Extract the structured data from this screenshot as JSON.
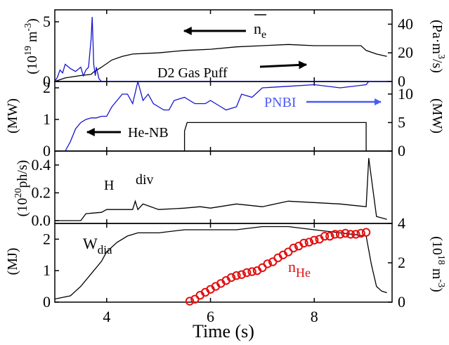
{
  "figure": {
    "xlabel": "Time (s)",
    "xticks": [
      4,
      6,
      8
    ],
    "xlim": [
      3,
      9.5
    ]
  },
  "chart_data": [
    {
      "type": "line",
      "panel": "ne-gaspuff",
      "ylim_left": [
        0,
        6
      ],
      "ylim_right": [
        0,
        50
      ],
      "yticks_left": [
        0,
        5
      ],
      "yticks_right": [
        0,
        20,
        40
      ],
      "ylabel_left": {
        "base": "(10",
        "sup": "19",
        "mid": " m",
        "sup2": "-3",
        "end": ")"
      },
      "ylabel_right": {
        "base": "(Pa·m",
        "sup": "3",
        "end": "/s)"
      },
      "annotations": {
        "ne": "n",
        "ne_sub": "e",
        "gas": "D2 Gas Puff"
      },
      "series": [
        {
          "name": "ne",
          "color": "#000000",
          "x": [
            3.0,
            3.2,
            3.5,
            3.7,
            3.75,
            3.9,
            4.1,
            4.3,
            4.5,
            5.0,
            5.5,
            6.0,
            6.5,
            7.0,
            7.5,
            8.0,
            8.5,
            8.9,
            9.0,
            9.2,
            9.4
          ],
          "y": [
            0.0,
            0.3,
            0.5,
            0.6,
            0.8,
            1.2,
            1.8,
            2.1,
            2.3,
            2.4,
            2.6,
            2.7,
            2.9,
            3.0,
            3.1,
            3.0,
            3.0,
            3.0,
            2.6,
            2.3,
            2.1
          ]
        },
        {
          "name": "D2 Gas Puff",
          "color": "#1515d0",
          "x": [
            3.0,
            3.05,
            3.1,
            3.15,
            3.2,
            3.3,
            3.4,
            3.5,
            3.55,
            3.6,
            3.65,
            3.7,
            3.72,
            3.75,
            3.78,
            3.8,
            3.85,
            3.9,
            4.0,
            4.2,
            5.0,
            6.0,
            7.0,
            8.0,
            9.0,
            9.4
          ],
          "y": [
            0,
            3,
            8,
            6,
            12,
            9,
            7,
            10,
            4,
            8,
            10,
            30,
            45,
            12,
            4,
            10,
            2,
            0,
            0,
            0,
            0,
            0,
            0,
            0,
            0,
            0
          ]
        }
      ]
    },
    {
      "type": "line",
      "panel": "nbi",
      "ylim_left": [
        0,
        2.2
      ],
      "ylim_right": [
        0,
        12.2
      ],
      "yticks_left": [
        0,
        1,
        2
      ],
      "yticks_right": [
        0,
        5,
        10
      ],
      "ylabel_left": {
        "base": "(MW)"
      },
      "ylabel_right": {
        "base": "(MW)"
      },
      "annotations": {
        "pnbi": "PNBI",
        "henb": "He-NB"
      },
      "series": [
        {
          "name": "PNBI",
          "color": "#1515d0",
          "x": [
            3.0,
            3.2,
            3.3,
            3.4,
            3.5,
            3.6,
            3.7,
            3.8,
            3.9,
            4.0,
            4.1,
            4.2,
            4.3,
            4.4,
            4.5,
            4.6,
            4.7,
            4.8,
            4.9,
            5.0,
            5.1,
            5.2,
            5.3,
            5.5,
            5.7,
            5.9,
            6.0,
            6.2,
            6.3,
            6.5,
            6.6,
            6.8,
            7.0,
            7.5,
            8.0,
            8.5,
            9.0,
            9.05,
            9.5
          ],
          "y": [
            0.0,
            0.0,
            0.3,
            0.7,
            0.9,
            1.0,
            1.05,
            1.05,
            1.1,
            1.1,
            1.4,
            1.6,
            1.8,
            1.8,
            1.5,
            2.2,
            1.6,
            1.8,
            1.5,
            1.4,
            1.3,
            1.3,
            1.6,
            1.7,
            1.5,
            1.5,
            1.6,
            1.4,
            1.3,
            1.4,
            1.8,
            1.7,
            2.0,
            2.05,
            2.1,
            2.0,
            2.1,
            2.2,
            2.2
          ]
        },
        {
          "name": "He-NB",
          "color": "#000000",
          "x": [
            3.0,
            5.5,
            5.5,
            5.55,
            9.0,
            9.0,
            9.5
          ],
          "y": [
            0.0,
            0.0,
            3.5,
            5.0,
            5.0,
            0.0,
            0.0
          ]
        }
      ]
    },
    {
      "type": "line",
      "panel": "h-div",
      "ylim": [
        -0.02,
        0.5
      ],
      "yticks": [
        0.0,
        0.2,
        0.4
      ],
      "ylabel": {
        "base": "(10",
        "sup": "20",
        "end": "ph/s)"
      },
      "annotations": {
        "h": "H",
        "div": "div"
      },
      "series": [
        {
          "name": "H",
          "color": "#000000",
          "x": [
            3.0,
            3.5,
            3.6,
            3.9,
            4.0,
            4.5,
            4.55,
            4.6,
            4.7,
            5.0,
            5.5,
            5.8,
            6.0,
            6.5,
            7.0,
            7.5,
            8.0,
            8.5,
            9.0,
            9.05,
            9.2,
            9.4
          ],
          "y": [
            0.0,
            0.0,
            0.05,
            0.06,
            0.08,
            0.08,
            0.14,
            0.08,
            0.12,
            0.08,
            0.09,
            0.1,
            0.09,
            0.12,
            0.1,
            0.14,
            0.13,
            0.12,
            0.1,
            0.45,
            0.03,
            0.01
          ]
        }
      ]
    },
    {
      "type": "line",
      "panel": "wdia-nhe",
      "ylim_left": [
        0,
        2.5
      ],
      "ylim_right": [
        0,
        4
      ],
      "yticks_left": [
        0,
        1,
        2
      ],
      "yticks_right": [
        0,
        2,
        4
      ],
      "ylabel_left": {
        "base": "(MJ)"
      },
      "ylabel_right": {
        "base": "(10",
        "sup": "18",
        "mid": " m",
        "sup2": "-3",
        "end": ")"
      },
      "annotations": {
        "wdia": "W",
        "wdia_sub": "dia",
        "nhe": "n",
        "nhe_sub": "He"
      },
      "series": [
        {
          "name": "Wdia",
          "color": "#000000",
          "x": [
            3.0,
            3.3,
            3.5,
            3.7,
            3.9,
            4.0,
            4.2,
            4.4,
            4.6,
            5.0,
            5.5,
            6.0,
            6.5,
            7.0,
            7.5,
            8.0,
            8.5,
            9.0,
            9.1,
            9.2,
            9.3,
            9.4
          ],
          "y": [
            0.1,
            0.2,
            0.5,
            0.9,
            1.3,
            1.6,
            1.9,
            2.1,
            2.2,
            2.2,
            2.3,
            2.3,
            2.3,
            2.4,
            2.4,
            2.3,
            2.2,
            2.1,
            1.2,
            0.5,
            0.35,
            0.3
          ]
        },
        {
          "name": "nHe",
          "color": "#e01010",
          "x": [
            5.6,
            5.7,
            5.8,
            5.9,
            6.0,
            6.1,
            6.2,
            6.3,
            6.4,
            6.5,
            6.6,
            6.7,
            6.8,
            6.9,
            7.0,
            7.1,
            7.2,
            7.3,
            7.4,
            7.5,
            7.6,
            7.7,
            7.8,
            7.9,
            8.0,
            8.1,
            8.2,
            8.3,
            8.4,
            8.5,
            8.6,
            8.7,
            8.8,
            8.9,
            9.0
          ],
          "y": [
            0.05,
            0.15,
            0.35,
            0.5,
            0.65,
            0.8,
            0.95,
            1.1,
            1.25,
            1.35,
            1.4,
            1.5,
            1.55,
            1.6,
            1.75,
            1.95,
            2.05,
            2.25,
            2.4,
            2.55,
            2.75,
            2.85,
            3.0,
            3.05,
            3.15,
            3.2,
            3.35,
            3.35,
            3.45,
            3.45,
            3.5,
            3.45,
            3.45,
            3.5,
            3.55
          ]
        }
      ]
    }
  ]
}
